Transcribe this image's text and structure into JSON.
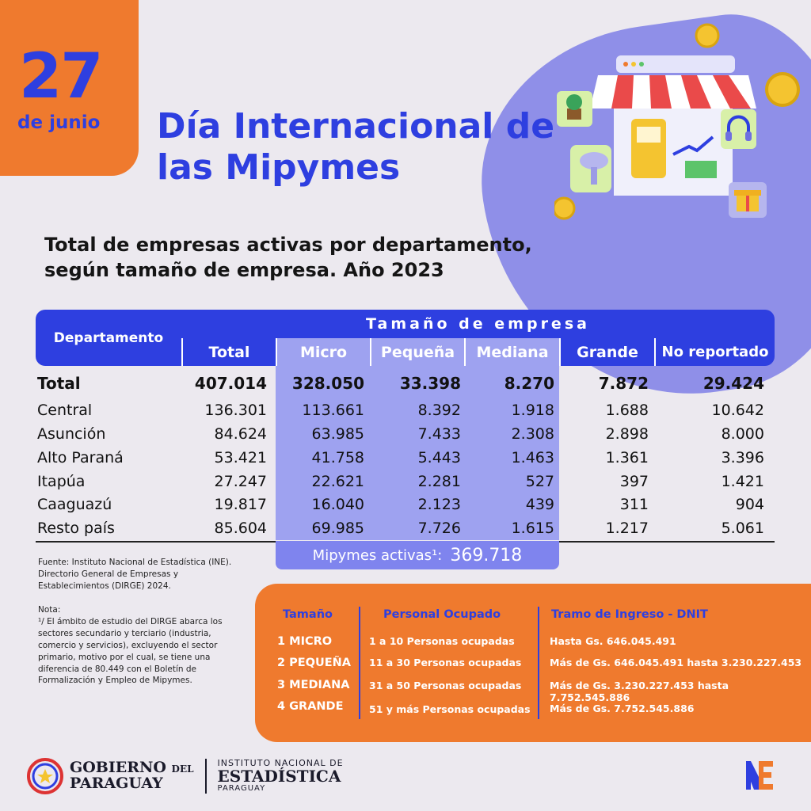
{
  "header": {
    "day": "27",
    "month": "de junio",
    "title": "Día Internacional de las Mipymes"
  },
  "subtitle": "Total de empresas activas por departamento, según tamaño de empresa. Año 2023",
  "table": {
    "dept_header": "Departamento",
    "group_header": "Tamaño de empresa",
    "columns": [
      "Total",
      "Micro",
      "Pequeña",
      "Mediana",
      "Grande",
      "No reportado"
    ],
    "rows": [
      {
        "dept": "Total",
        "values": [
          "407.014",
          "328.050",
          "33.398",
          "8.270",
          "7.872",
          "29.424"
        ]
      },
      {
        "dept": "Central",
        "values": [
          "136.301",
          "113.661",
          "8.392",
          "1.918",
          "1.688",
          "10.642"
        ]
      },
      {
        "dept": "Asunción",
        "values": [
          "84.624",
          "63.985",
          "7.433",
          "2.308",
          "2.898",
          "8.000"
        ]
      },
      {
        "dept": "Alto Paraná",
        "values": [
          "53.421",
          "41.758",
          "5.443",
          "1.463",
          "1.361",
          "3.396"
        ]
      },
      {
        "dept": "Itapúa",
        "values": [
          "27.247",
          "22.621",
          "2.281",
          "527",
          "397",
          "1.421"
        ]
      },
      {
        "dept": "Caaguazú",
        "values": [
          "19.817",
          "16.040",
          "2.123",
          "439",
          "311",
          "904"
        ]
      },
      {
        "dept": "Resto país",
        "values": [
          "85.604",
          "69.985",
          "7.726",
          "1.615",
          "1.217",
          "5.061"
        ]
      }
    ],
    "mipymes_label": "Mipymes activas¹:",
    "mipymes_value": "369.718"
  },
  "fuente": "Fuente: Instituto Nacional de Estadística (INE). Directorio General de Empresas y Establecimientos (DIRGE) 2024.",
  "nota_title": "Nota:",
  "nota_text": "¹/ El ámbito de estudio del DIRGE abarca los sectores secundario y terciario (industria, comercio y servicios), excluyendo el sector primario, motivo por el cual, se tiene una diferencia de 80.449 con el Boletín de Formalización y Empleo de Mipymes.",
  "legend": {
    "headers": [
      "Tamaño",
      "Personal Ocupado",
      "Tramo de Ingreso - DNIT"
    ],
    "rows": [
      {
        "size": "1 MICRO",
        "personal": "1 a 10 Personas ocupadas",
        "tramo": "Hasta Gs. 646.045.491"
      },
      {
        "size": "2 PEQUEÑA",
        "personal": "11 a 30 Personas ocupadas",
        "tramo": "Más de Gs. 646.045.491 hasta 3.230.227.453"
      },
      {
        "size": "3 MEDIANA",
        "personal": "31 a 50 Personas ocupadas",
        "tramo": "Más de Gs. 3.230.227.453 hasta 7.752.545.886"
      },
      {
        "size": "4 GRANDE",
        "personal": "51 y más Personas ocupadas",
        "tramo": "Más de Gs. 7.752.545.886"
      }
    ]
  },
  "footer": {
    "gob_line1": "GOBIERNO",
    "gob_del": "DEL",
    "gob_line2": "PARAGUAY",
    "ine_line1": "INSTITUTO NACIONAL DE",
    "ine_line2": "ESTADÍSTICA",
    "ine_line3": "PARAGUAY",
    "ine_logo_text": "NE"
  },
  "colors": {
    "blue": "#2e3fe0",
    "light_blue": "#9ea2f0",
    "orange": "#ef7a2e",
    "background": "#ece9ef"
  },
  "icons": [
    "shop-illustration",
    "coin-icon",
    "plant-icon",
    "headphones-icon",
    "gift-icon",
    "hair-dryer-icon",
    "seal-icon",
    "ine-logo"
  ]
}
